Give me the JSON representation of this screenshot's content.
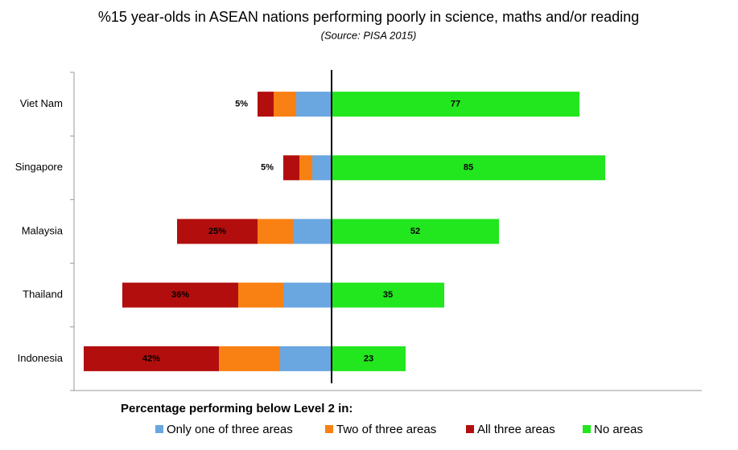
{
  "chart_data": {
    "type": "diverging-bar",
    "title": "%15 year-olds in ASEAN nations performing poorly in science, maths and/or reading",
    "subtitle": "(Source: PISA 2015)",
    "legend_title": "Percentage performing below Level 2 in:",
    "categories": [
      "Viet Nam",
      "Singapore",
      "Malaysia",
      "Thailand",
      "Indonesia"
    ],
    "xlim": [
      -80,
      115
    ],
    "series": [
      {
        "name": "Only one of three areas",
        "color": "#6aa6e0",
        "side": "left",
        "values": [
          11,
          6,
          12,
          15,
          16
        ]
      },
      {
        "name": "Two of three areas",
        "color": "#f98012",
        "side": "left",
        "values": [
          7,
          4,
          11,
          14,
          19
        ]
      },
      {
        "name": "All three areas",
        "color": "#b30e0e",
        "side": "left",
        "values": [
          5,
          5,
          25,
          36,
          42
        ],
        "value_labels": [
          "5%",
          "5%",
          "25%",
          "36%",
          "42%"
        ]
      },
      {
        "name": "No areas",
        "color": "#22e61e",
        "side": "right",
        "values": [
          77,
          85,
          52,
          35,
          23
        ]
      }
    ]
  }
}
